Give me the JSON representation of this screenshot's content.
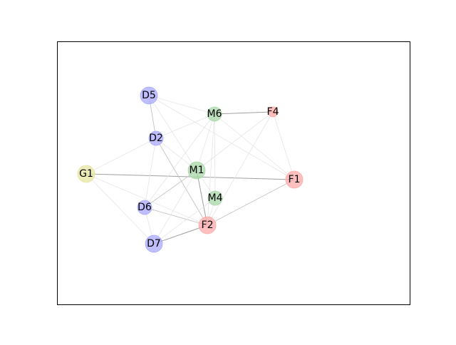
{
  "graph": {
    "nodes": [
      {
        "id": "D5",
        "label": "D5",
        "group": "D",
        "color": "#aaaaff",
        "size": "large"
      },
      {
        "id": "M6",
        "label": "M6",
        "group": "M",
        "color": "#a8d8a8",
        "size": "small"
      },
      {
        "id": "F4",
        "label": "F4",
        "group": "F",
        "color": "#ffaaaa",
        "size": "tiny"
      },
      {
        "id": "D2",
        "label": "D2",
        "group": "D",
        "color": "#aaaaff",
        "size": "small"
      },
      {
        "id": "G1",
        "label": "G1",
        "group": "G",
        "color": "#e6e6a0",
        "size": "large"
      },
      {
        "id": "M1",
        "label": "M1",
        "group": "M",
        "color": "#a8d8a8",
        "size": "large"
      },
      {
        "id": "F1",
        "label": "F1",
        "group": "F",
        "color": "#ffaaaa",
        "size": "large"
      },
      {
        "id": "M4",
        "label": "M4",
        "group": "M",
        "color": "#a8d8a8",
        "size": "small"
      },
      {
        "id": "D6",
        "label": "D6",
        "group": "D",
        "color": "#aaaaff",
        "size": "small"
      },
      {
        "id": "F2",
        "label": "F2",
        "group": "F",
        "color": "#ffaaaa",
        "size": "large"
      },
      {
        "id": "D7",
        "label": "D7",
        "group": "D",
        "color": "#aaaaff",
        "size": "large"
      }
    ],
    "edges": [
      {
        "source": "M6",
        "target": "F4",
        "weight": "strong"
      },
      {
        "source": "G1",
        "target": "F1",
        "weight": "strong"
      },
      {
        "source": "M1",
        "target": "F2",
        "weight": "strong"
      },
      {
        "source": "D7",
        "target": "F2",
        "weight": "strong"
      },
      {
        "source": "F2",
        "target": "F1",
        "weight": "medium"
      },
      {
        "source": "M1",
        "target": "D6",
        "weight": "medium"
      },
      {
        "source": "D5",
        "target": "D2",
        "weight": "medium"
      },
      {
        "source": "D2",
        "target": "F2",
        "weight": "medium"
      },
      {
        "source": "D6",
        "target": "F2",
        "weight": "medium"
      },
      {
        "source": "G1",
        "target": "D2",
        "weight": "faint"
      },
      {
        "source": "G1",
        "target": "D7",
        "weight": "faint"
      },
      {
        "source": "G1",
        "target": "F2",
        "weight": "faint"
      },
      {
        "source": "D5",
        "target": "M6",
        "weight": "faint"
      },
      {
        "source": "D5",
        "target": "M1",
        "weight": "faint"
      },
      {
        "source": "D5",
        "target": "F1",
        "weight": "faint"
      },
      {
        "source": "M6",
        "target": "M1",
        "weight": "faint"
      },
      {
        "source": "M6",
        "target": "M4",
        "weight": "faint"
      },
      {
        "source": "M6",
        "target": "D2",
        "weight": "faint"
      },
      {
        "source": "M6",
        "target": "F1",
        "weight": "faint"
      },
      {
        "source": "M6",
        "target": "D6",
        "weight": "faint"
      },
      {
        "source": "F4",
        "target": "F1",
        "weight": "faint"
      },
      {
        "source": "F4",
        "target": "M1",
        "weight": "faint"
      },
      {
        "source": "F4",
        "target": "F2",
        "weight": "faint"
      },
      {
        "source": "D2",
        "target": "M1",
        "weight": "faint"
      },
      {
        "source": "D2",
        "target": "D6",
        "weight": "faint"
      },
      {
        "source": "M1",
        "target": "M4",
        "weight": "faint"
      },
      {
        "source": "M1",
        "target": "D7",
        "weight": "faint"
      },
      {
        "source": "M4",
        "target": "F2",
        "weight": "faint"
      },
      {
        "source": "M4",
        "target": "D7",
        "weight": "faint"
      },
      {
        "source": "D6",
        "target": "D7",
        "weight": "faint"
      },
      {
        "source": "M6",
        "target": "F2",
        "weight": "faint"
      }
    ],
    "colors": {
      "frame": "#000000",
      "edge_strong": "#a0a0a0",
      "edge_medium": "#c4c4c4",
      "edge_faint": "#e6e6e6",
      "label": "#000000"
    }
  }
}
